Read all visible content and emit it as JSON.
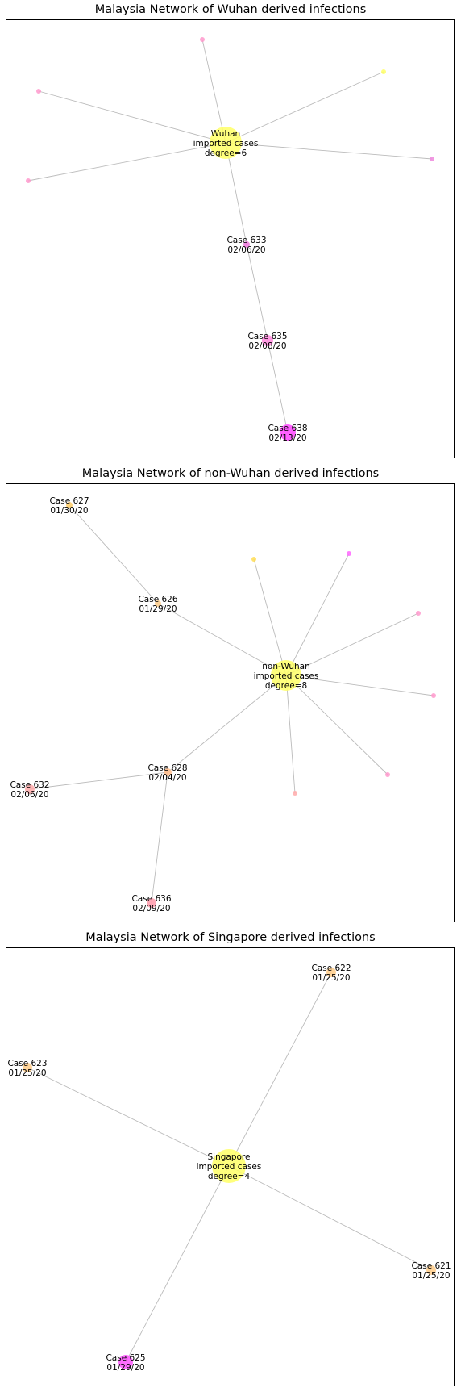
{
  "panels": [
    {
      "title": "Malaysia Network of Wuhan derived infections",
      "hub": {
        "lines": [
          "Wuhan",
          "imported cases",
          "degree=6"
        ],
        "color": "#ffff66"
      },
      "nodes": [
        {
          "id": "w1",
          "lines": [],
          "color": "#ff99cc",
          "parent": "hub"
        },
        {
          "id": "w2",
          "lines": [],
          "color": "#ff99cc",
          "parent": "hub"
        },
        {
          "id": "w3",
          "lines": [],
          "color": "#ffff66",
          "parent": "hub"
        },
        {
          "id": "w4",
          "lines": [],
          "color": "#ff99cc",
          "parent": "hub"
        },
        {
          "id": "w5",
          "lines": [],
          "color": "#ee88dd",
          "parent": "hub"
        },
        {
          "id": "c633",
          "lines": [
            "Case 633",
            "02/06/20"
          ],
          "color": "#ee77dd",
          "parent": "hub"
        },
        {
          "id": "c635",
          "lines": [
            "Case 635",
            "02/08/20"
          ],
          "color": "#ff88dd",
          "parent": "c633"
        },
        {
          "id": "c638",
          "lines": [
            "Case 638",
            "02/13/20"
          ],
          "color": "#ff44ff",
          "parent": "c635"
        }
      ]
    },
    {
      "title": "Malaysia Network of non-Wuhan derived infections",
      "hub": {
        "lines": [
          "non-Wuhan",
          "imported cases",
          "degree=8"
        ],
        "color": "#ffff66"
      },
      "nodes": [
        {
          "id": "n1",
          "lines": [],
          "color": "#ffdd55",
          "parent": "hub"
        },
        {
          "id": "n2",
          "lines": [],
          "color": "#ff66ff",
          "parent": "hub"
        },
        {
          "id": "n3",
          "lines": [],
          "color": "#ff99cc",
          "parent": "hub"
        },
        {
          "id": "n4",
          "lines": [],
          "color": "#ff99cc",
          "parent": "hub"
        },
        {
          "id": "n5",
          "lines": [],
          "color": "#ff99cc",
          "parent": "hub"
        },
        {
          "id": "n6",
          "lines": [],
          "color": "#ffaaaa",
          "parent": "hub"
        },
        {
          "id": "c626",
          "lines": [
            "Case 626",
            "01/29/20"
          ],
          "color": "#ffcc88",
          "parent": "hub"
        },
        {
          "id": "c627",
          "lines": [
            "Case 627",
            "01/30/20"
          ],
          "color": "#ffcc66",
          "parent": "c626"
        },
        {
          "id": "c628",
          "lines": [
            "Case 628",
            "02/04/20"
          ],
          "color": "#ffbb88",
          "parent": "hub"
        },
        {
          "id": "c632",
          "lines": [
            "Case 632",
            "02/06/20"
          ],
          "color": "#ffaaaa",
          "parent": "c628"
        },
        {
          "id": "c636",
          "lines": [
            "Case 636",
            "02/09/20"
          ],
          "color": "#ff99aa",
          "parent": "c628"
        }
      ]
    },
    {
      "title": "Malaysia Network of Singapore derived infections",
      "hub": {
        "lines": [
          "Singapore",
          "imported cases",
          "degree=4"
        ],
        "color": "#ffff66"
      },
      "nodes": [
        {
          "id": "c622",
          "lines": [
            "Case 622",
            "01/25/20"
          ],
          "color": "#ffcc88",
          "parent": "hub"
        },
        {
          "id": "c623",
          "lines": [
            "Case 623",
            "01/25/20"
          ],
          "color": "#ffcc88",
          "parent": "hub"
        },
        {
          "id": "c621",
          "lines": [
            "Case 621",
            "01/25/20"
          ],
          "color": "#ffcc88",
          "parent": "hub"
        },
        {
          "id": "c625",
          "lines": [
            "Case 625",
            "01/29/20"
          ],
          "color": "#ff55ff",
          "parent": "hub"
        }
      ]
    }
  ]
}
